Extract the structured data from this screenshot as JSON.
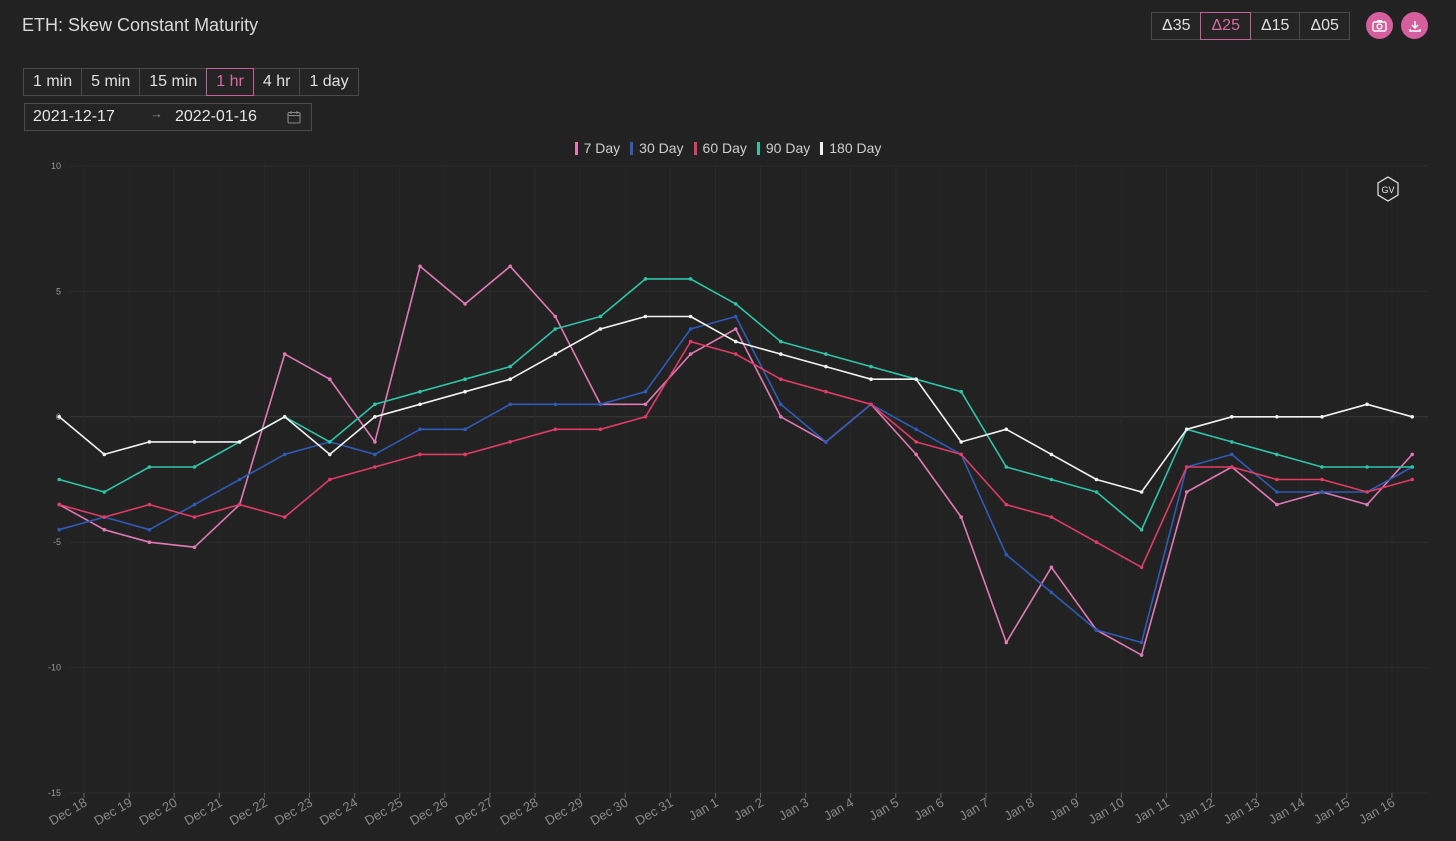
{
  "header": {
    "title": "ETH: Skew Constant Maturity",
    "deltas": [
      "Δ35",
      "Δ25",
      "Δ15",
      "Δ05"
    ],
    "active_delta": "Δ25",
    "camera_icon": "camera-icon",
    "download_icon": "download-icon",
    "accent_color": "#d45f9c"
  },
  "controls": {
    "intervals": [
      "1 min",
      "5 min",
      "15 min",
      "1 hr",
      "4 hr",
      "1 day"
    ],
    "active_interval": "1 hr",
    "date_from": "2021-12-17",
    "date_sep": "→",
    "date_to": "2022-01-16",
    "calendar_icon": "calendar-icon"
  },
  "watermark": "GV",
  "chart_data": {
    "type": "line",
    "title": "",
    "xlabel": "",
    "ylabel": "",
    "ylim": [
      -15,
      10
    ],
    "yticks": [
      10,
      5,
      0,
      -5,
      -10,
      -15
    ],
    "x_tick_labels": [
      "Dec 18",
      "Dec 19",
      "Dec 20",
      "Dec 21",
      "Dec 22",
      "Dec 23",
      "Dec 24",
      "Dec 25",
      "Dec 26",
      "Dec 27",
      "Dec 28",
      "Dec 29",
      "Dec 30",
      "Dec 31",
      "Jan 1",
      "Jan 2",
      "Jan 3",
      "Jan 4",
      "Jan 5",
      "Jan 6",
      "Jan 7",
      "Jan 8",
      "Jan 9",
      "Jan 10",
      "Jan 11",
      "Jan 12",
      "Jan 13",
      "Jan 14",
      "Jan 15",
      "Jan 16"
    ],
    "x": [
      "Dec 17",
      "Dec 18",
      "Dec 19",
      "Dec 20",
      "Dec 21",
      "Dec 22",
      "Dec 23",
      "Dec 24",
      "Dec 25",
      "Dec 26",
      "Dec 27",
      "Dec 28",
      "Dec 29",
      "Dec 30",
      "Dec 31",
      "Jan 1",
      "Jan 2",
      "Jan 3",
      "Jan 4",
      "Jan 5",
      "Jan 6",
      "Jan 7",
      "Jan 8",
      "Jan 9",
      "Jan 10",
      "Jan 11",
      "Jan 12",
      "Jan 13",
      "Jan 14",
      "Jan 15",
      "Jan 16"
    ],
    "grid": true,
    "legend_position": "top-center",
    "series": [
      {
        "name": "7 Day",
        "color": "#e07ab4",
        "values": [
          -3.5,
          -4.5,
          -5.0,
          -5.2,
          -3.5,
          2.5,
          1.5,
          -1.0,
          6.0,
          4.5,
          6.0,
          4.0,
          0.5,
          0.5,
          2.5,
          3.5,
          0.0,
          -1.0,
          0.5,
          -1.5,
          -4.0,
          -9.0,
          -6.0,
          -8.5,
          -9.5,
          -3.0,
          -2.0,
          -3.5,
          -3.0,
          -3.5,
          -1.5
        ]
      },
      {
        "name": "30 Day",
        "color": "#2f5bb8",
        "values": [
          -4.5,
          -4.0,
          -4.5,
          -3.5,
          -2.5,
          -1.5,
          -1.0,
          -1.5,
          -0.5,
          -0.5,
          0.5,
          0.5,
          0.5,
          1.0,
          3.5,
          4.0,
          0.5,
          -1.0,
          0.5,
          -0.5,
          -1.5,
          -5.5,
          -7.0,
          -8.5,
          -9.0,
          -2.0,
          -1.5,
          -3.0,
          -3.0,
          -3.0,
          -2.0
        ]
      },
      {
        "name": "60 Day",
        "color": "#e03c64",
        "values": [
          -3.5,
          -4.0,
          -3.5,
          -4.0,
          -3.5,
          -4.0,
          -2.5,
          -2.0,
          -1.5,
          -1.5,
          -1.0,
          -0.5,
          -0.5,
          0.0,
          3.0,
          2.5,
          1.5,
          1.0,
          0.5,
          -1.0,
          -1.5,
          -3.5,
          -4.0,
          -5.0,
          -6.0,
          -2.0,
          -2.0,
          -2.5,
          -2.5,
          -3.0,
          -2.5
        ]
      },
      {
        "name": "90 Day",
        "color": "#2fc4a8",
        "values": [
          -2.5,
          -3.0,
          -2.0,
          -2.0,
          -1.0,
          0.0,
          -1.0,
          0.5,
          1.0,
          1.5,
          2.0,
          3.5,
          4.0,
          5.5,
          5.5,
          4.5,
          3.0,
          2.5,
          2.0,
          1.5,
          1.0,
          -2.0,
          -2.5,
          -3.0,
          -4.5,
          -0.5,
          -1.0,
          -1.5,
          -2.0,
          -2.0,
          -2.0
        ]
      },
      {
        "name": "180 Day",
        "color": "#f2f2f2",
        "values": [
          0.0,
          -1.5,
          -1.0,
          -1.0,
          -1.0,
          0.0,
          -1.5,
          0.0,
          0.5,
          1.0,
          1.5,
          2.5,
          3.5,
          4.0,
          4.0,
          3.0,
          2.5,
          2.0,
          1.5,
          1.5,
          -1.0,
          -0.5,
          -1.5,
          -2.5,
          -3.0,
          -0.5,
          0.0,
          0.0,
          0.0,
          0.5,
          0.0
        ]
      }
    ]
  }
}
